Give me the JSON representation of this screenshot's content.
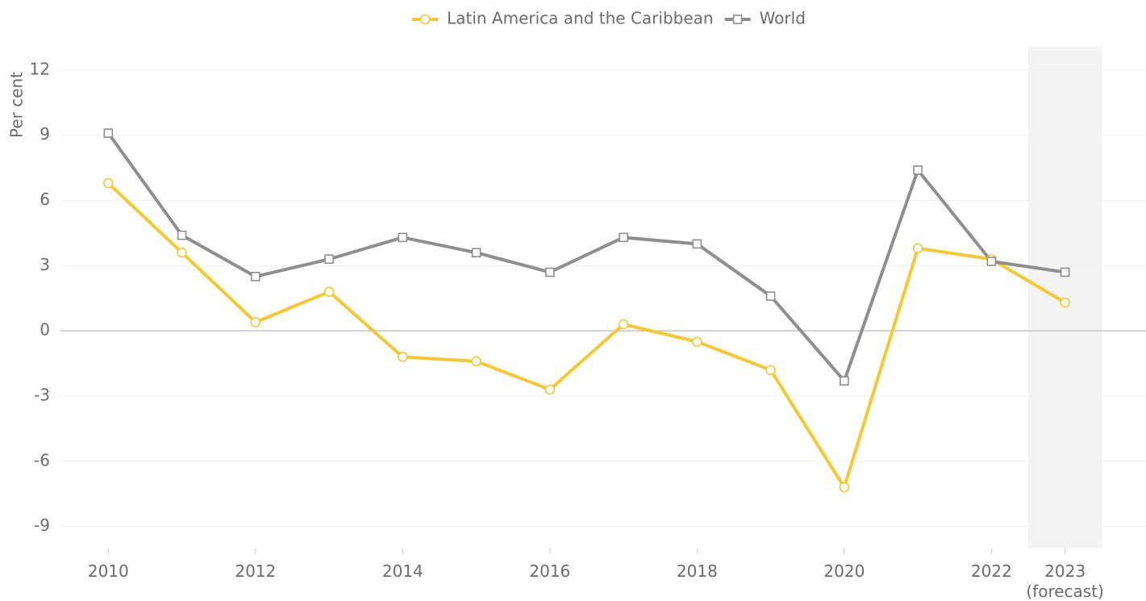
{
  "chart_data": {
    "type": "line",
    "y_label": "Per cent",
    "x": [
      2010,
      2011,
      2012,
      2013,
      2014,
      2015,
      2016,
      2017,
      2018,
      2019,
      2020,
      2021,
      2022,
      2023
    ],
    "series": [
      {
        "name": "Latin America and the Caribbean",
        "color": "#f7c82e",
        "marker": "circle",
        "values": [
          6.8,
          3.6,
          0.4,
          1.8,
          -1.2,
          -1.4,
          -2.7,
          0.3,
          -0.5,
          -1.8,
          -7.2,
          3.8,
          3.3,
          1.3
        ]
      },
      {
        "name": "World",
        "color": "#8e8e8e",
        "marker": "square",
        "values": [
          9.1,
          4.4,
          2.5,
          3.3,
          4.3,
          3.6,
          2.7,
          4.3,
          4.0,
          1.6,
          -2.3,
          7.4,
          3.2,
          2.7
        ]
      }
    ],
    "xlim": [
      2009.35,
      2024.1
    ],
    "xticks": [
      2010,
      2012,
      2014,
      2016,
      2018,
      2020,
      2022,
      {
        "value": 2023,
        "label": "2023 (forecast)"
      }
    ],
    "ylim": [
      -10,
      13
    ],
    "yticks": [
      -9,
      -6,
      -3,
      0,
      3,
      6,
      9,
      12
    ],
    "grid": true,
    "shaded_x": [
      2022.5,
      2023.5
    ],
    "legend": "top"
  }
}
